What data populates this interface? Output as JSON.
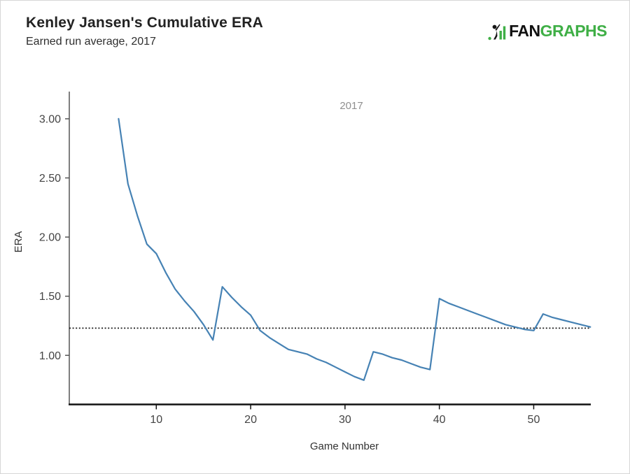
{
  "header": {
    "title": "Kenley Jansen's Cumulative ERA",
    "subtitle": "Earned run average, 2017"
  },
  "logo": {
    "fan": "FAN",
    "graphs": "GRAPHS",
    "green": "#3faf46",
    "black": "#111111",
    "mark_icon": "fangraphs-batter-icon"
  },
  "chart_data": {
    "type": "line",
    "title": "Kenley Jansen's Cumulative ERA",
    "subtitle": "Earned run average, 2017",
    "xlabel": "Game Number",
    "ylabel": "ERA",
    "legend": [
      {
        "label": "2017",
        "position": "top-center"
      }
    ],
    "grid": false,
    "line_color": "#4682b4",
    "reference_line": {
      "value": 1.23,
      "style": "dotted",
      "color": "#1a1a1a"
    },
    "xlim": [
      0.78,
      56.05
    ],
    "ylim": [
      0.582,
      3.23
    ],
    "x_ticks": [
      {
        "label": "10",
        "value": 10
      },
      {
        "label": "20",
        "value": 20
      },
      {
        "label": "30",
        "value": 30
      },
      {
        "label": "40",
        "value": 40
      },
      {
        "label": "50",
        "value": 50
      }
    ],
    "y_ticks": [
      {
        "label": "1.00",
        "value": 1.0
      },
      {
        "label": "1.50",
        "value": 1.5
      },
      {
        "label": "2.00",
        "value": 2.0
      },
      {
        "label": "2.50",
        "value": 2.5
      },
      {
        "label": "3.00",
        "value": 3.0
      }
    ],
    "series": [
      {
        "name": "2017",
        "x": [
          6,
          7,
          8,
          9,
          10,
          11,
          12,
          13,
          14,
          15,
          16,
          17,
          18,
          19,
          20,
          21,
          22,
          23,
          24,
          25,
          26,
          27,
          28,
          29,
          30,
          31,
          32,
          33,
          34,
          35,
          36,
          37,
          38,
          39,
          40,
          41,
          42,
          43,
          44,
          45,
          46,
          47,
          48,
          49,
          50,
          51,
          52,
          53,
          54,
          55,
          56
        ],
        "y": [
          3.0,
          2.45,
          2.18,
          1.94,
          1.86,
          1.7,
          1.56,
          1.46,
          1.37,
          1.26,
          1.13,
          1.58,
          1.49,
          1.41,
          1.34,
          1.21,
          1.15,
          1.1,
          1.05,
          1.03,
          1.01,
          0.97,
          0.94,
          0.9,
          0.86,
          0.82,
          0.79,
          1.03,
          1.01,
          0.98,
          0.96,
          0.93,
          0.9,
          0.88,
          1.48,
          1.44,
          1.41,
          1.38,
          1.35,
          1.32,
          1.29,
          1.26,
          1.24,
          1.22,
          1.21,
          1.35,
          1.32,
          1.3,
          1.28,
          1.26,
          1.24
        ]
      }
    ]
  }
}
